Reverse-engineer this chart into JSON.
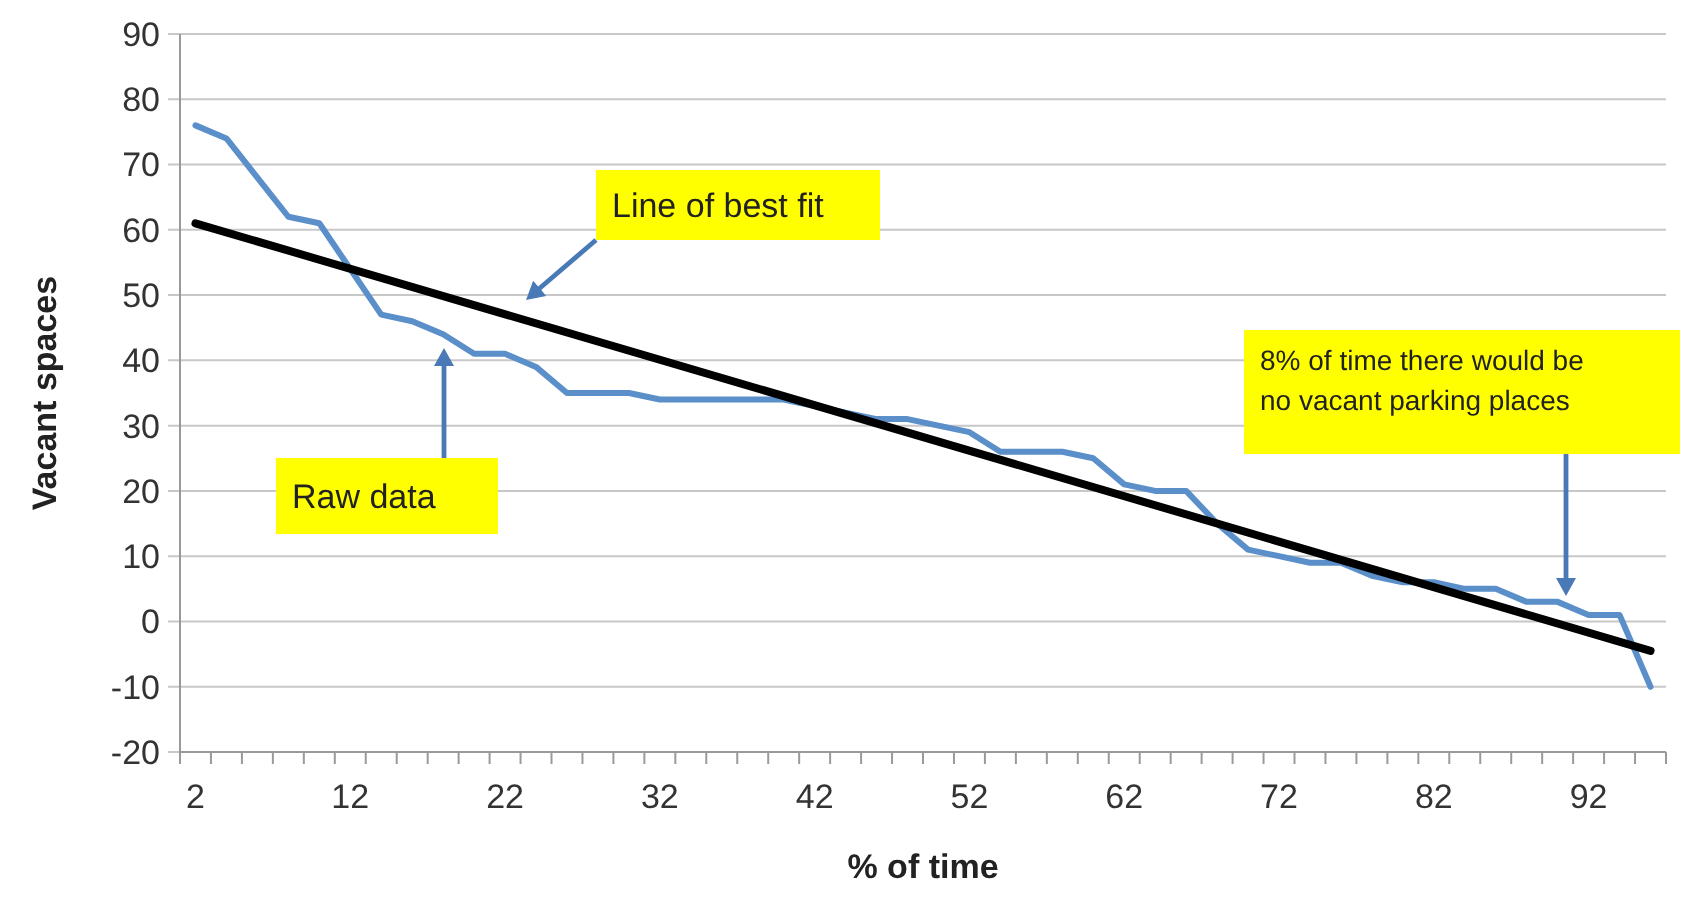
{
  "chart_data": {
    "type": "line",
    "xlabel": "% of time",
    "ylabel": "Vacant spaces",
    "x": [
      2,
      4,
      6,
      8,
      10,
      12,
      14,
      16,
      18,
      20,
      22,
      24,
      26,
      28,
      30,
      32,
      34,
      36,
      38,
      40,
      42,
      44,
      46,
      48,
      50,
      52,
      54,
      56,
      58,
      60,
      62,
      64,
      66,
      68,
      70,
      72,
      74,
      76,
      78,
      80,
      82,
      84,
      86,
      88,
      90,
      92,
      94,
      96
    ],
    "series": [
      {
        "color": "#5b8fc9",
        "values": [
          76,
          74,
          68,
          62,
          61,
          54,
          47,
          46,
          44,
          41,
          41,
          39,
          35,
          35,
          35,
          34,
          34,
          34,
          34,
          34,
          33,
          32,
          31,
          31,
          30,
          29,
          26,
          26,
          26,
          25,
          21,
          20,
          20,
          15,
          11,
          10,
          9,
          9,
          7,
          6,
          6,
          5,
          5,
          3,
          3,
          1,
          1,
          -10
        ]
      },
      {
        "color": "#000000",
        "x": [
          2,
          96
        ],
        "values": [
          61,
          -4.5
        ]
      }
    ],
    "xlim": [
      1,
      97
    ],
    "xticks": [
      2,
      12,
      22,
      32,
      42,
      52,
      62,
      72,
      82,
      92
    ],
    "ylim": [
      -20,
      90
    ],
    "yticks": [
      -20,
      -10,
      0,
      10,
      20,
      30,
      40,
      50,
      60,
      70,
      80,
      90
    ],
    "grid": "y",
    "marker": "none",
    "line_style": "solid",
    "annotations": [
      "Line of best fit",
      "Raw data",
      "8% of time there would be no vacant parking places"
    ]
  }
}
